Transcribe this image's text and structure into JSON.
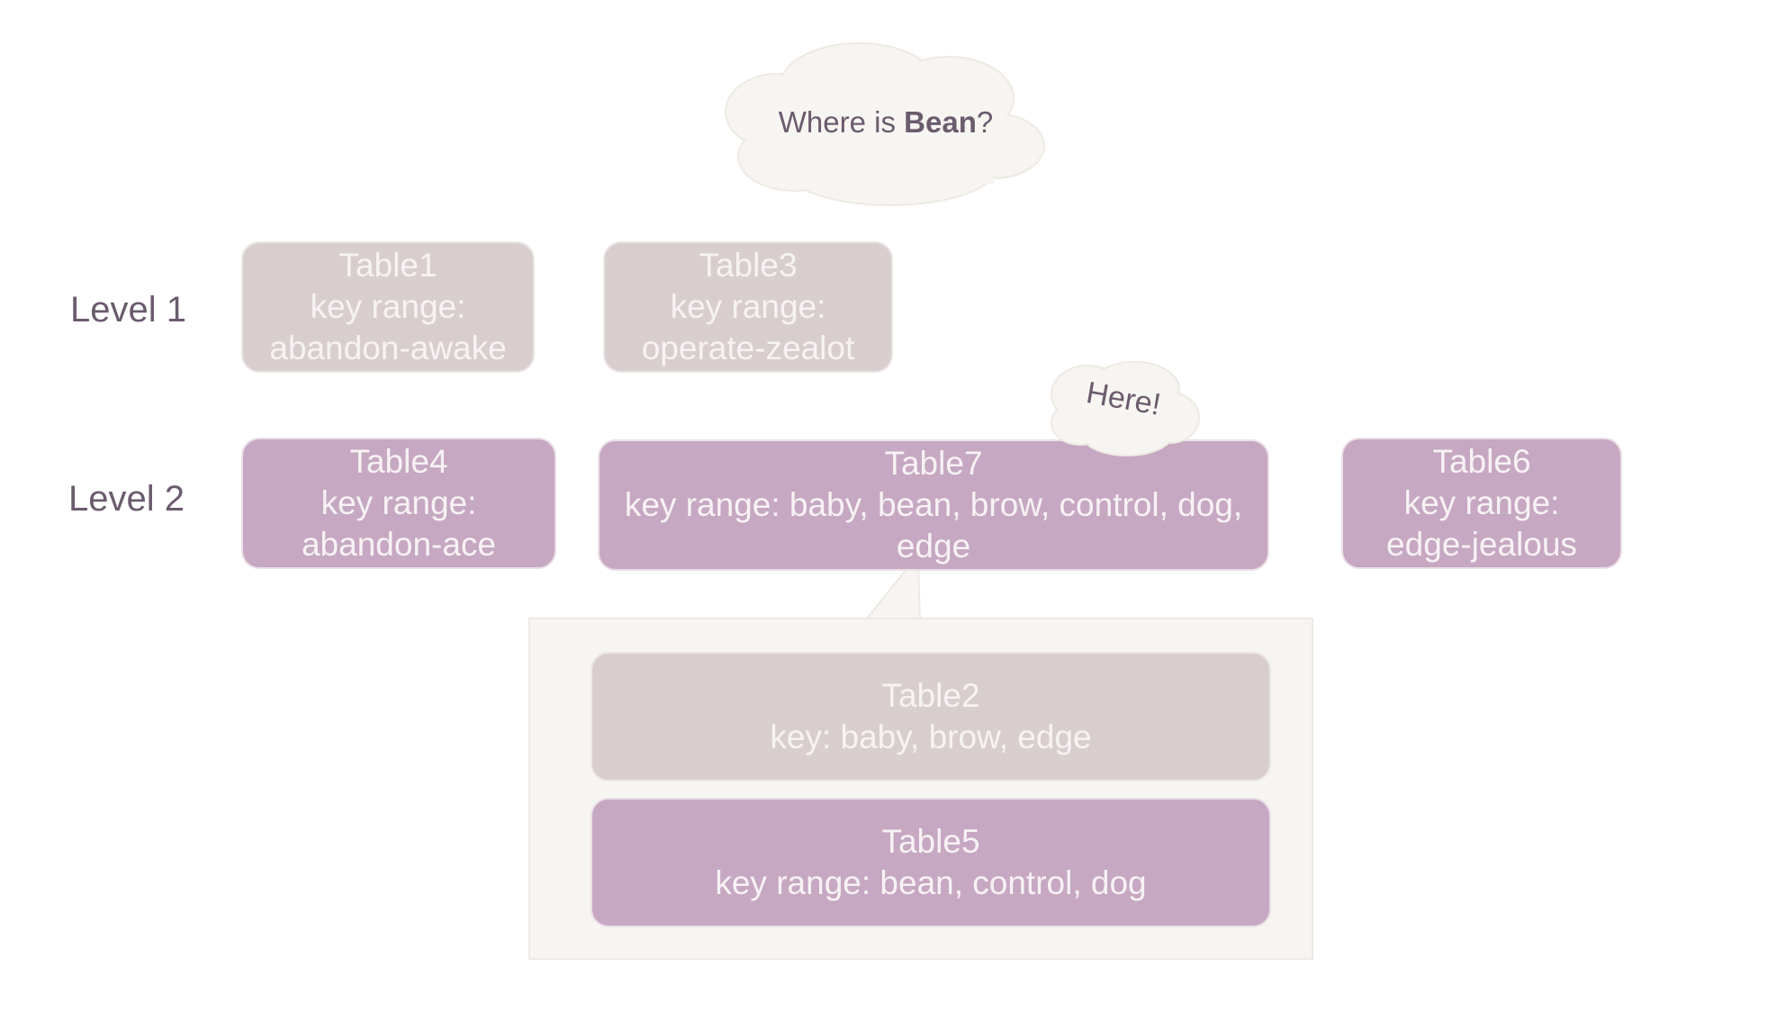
{
  "question_cloud": {
    "prefix": "Where is ",
    "highlight": "Bean",
    "suffix": "?"
  },
  "answer_cloud": {
    "text": "Here!"
  },
  "levels": [
    {
      "label": "Level 1"
    },
    {
      "label": "Level 2"
    }
  ],
  "level1_tables": [
    {
      "name": "Table1",
      "line2": "key range:",
      "line3": "abandon-awake"
    },
    {
      "name": "Table3",
      "line2": "key range:",
      "line3": "operate-zealot"
    }
  ],
  "level2_tables": [
    {
      "name": "Table4",
      "line2": "key range:",
      "line3": "abandon-ace"
    },
    {
      "name": "Table7",
      "line2": "key range: baby, bean, brow, control, dog,",
      "line3": "edge"
    },
    {
      "name": "Table6",
      "line2": "key range:",
      "line3": "edge-jealous"
    }
  ],
  "expanded_tables": [
    {
      "name": "Table2",
      "line2": "key: baby, brow, edge"
    },
    {
      "name": "Table5",
      "line2": "key range: bean, control, dog"
    }
  ],
  "colors": {
    "pale_box": "#d9cece",
    "mauve_box": "#c6a8c2",
    "box_text": "#f7f2f4",
    "label_text": "#6b5b6e",
    "cloud_fill": "#f7f5f1",
    "callout_fill": "#f7f5f1"
  }
}
